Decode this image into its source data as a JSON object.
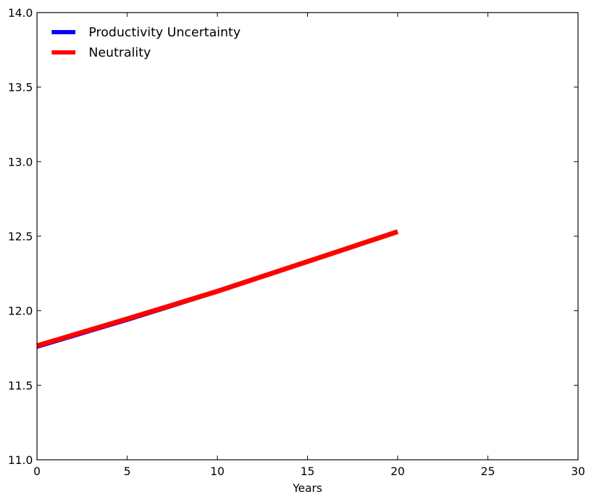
{
  "chart_data": {
    "type": "line",
    "title": "",
    "xlabel": "Years",
    "ylabel": "",
    "xlim": [
      0,
      30
    ],
    "ylim": [
      11.0,
      14.0
    ],
    "xticks": [
      0,
      5,
      10,
      15,
      20,
      25,
      30
    ],
    "xtick_labels": [
      "0",
      "5",
      "10",
      "15",
      "20",
      "25",
      "30"
    ],
    "yticks": [
      11.0,
      11.5,
      12.0,
      12.5,
      13.0,
      13.5,
      14.0
    ],
    "ytick_labels": [
      "11.0",
      "11.5",
      "12.0",
      "12.5",
      "13.0",
      "13.5",
      "14.0"
    ],
    "grid": false,
    "legend_position": "top-left",
    "series": [
      {
        "name": "Productivity Uncertainty",
        "color": "#0000ff",
        "x": [
          0,
          5,
          10,
          15,
          20
        ],
        "y": [
          11.75,
          11.93,
          12.12,
          12.32,
          12.53
        ]
      },
      {
        "name": "Neutrality",
        "color": "#ff0000",
        "x": [
          0,
          5,
          10,
          15,
          20
        ],
        "y": [
          11.765,
          11.945,
          12.13,
          12.33,
          12.53
        ]
      }
    ]
  }
}
